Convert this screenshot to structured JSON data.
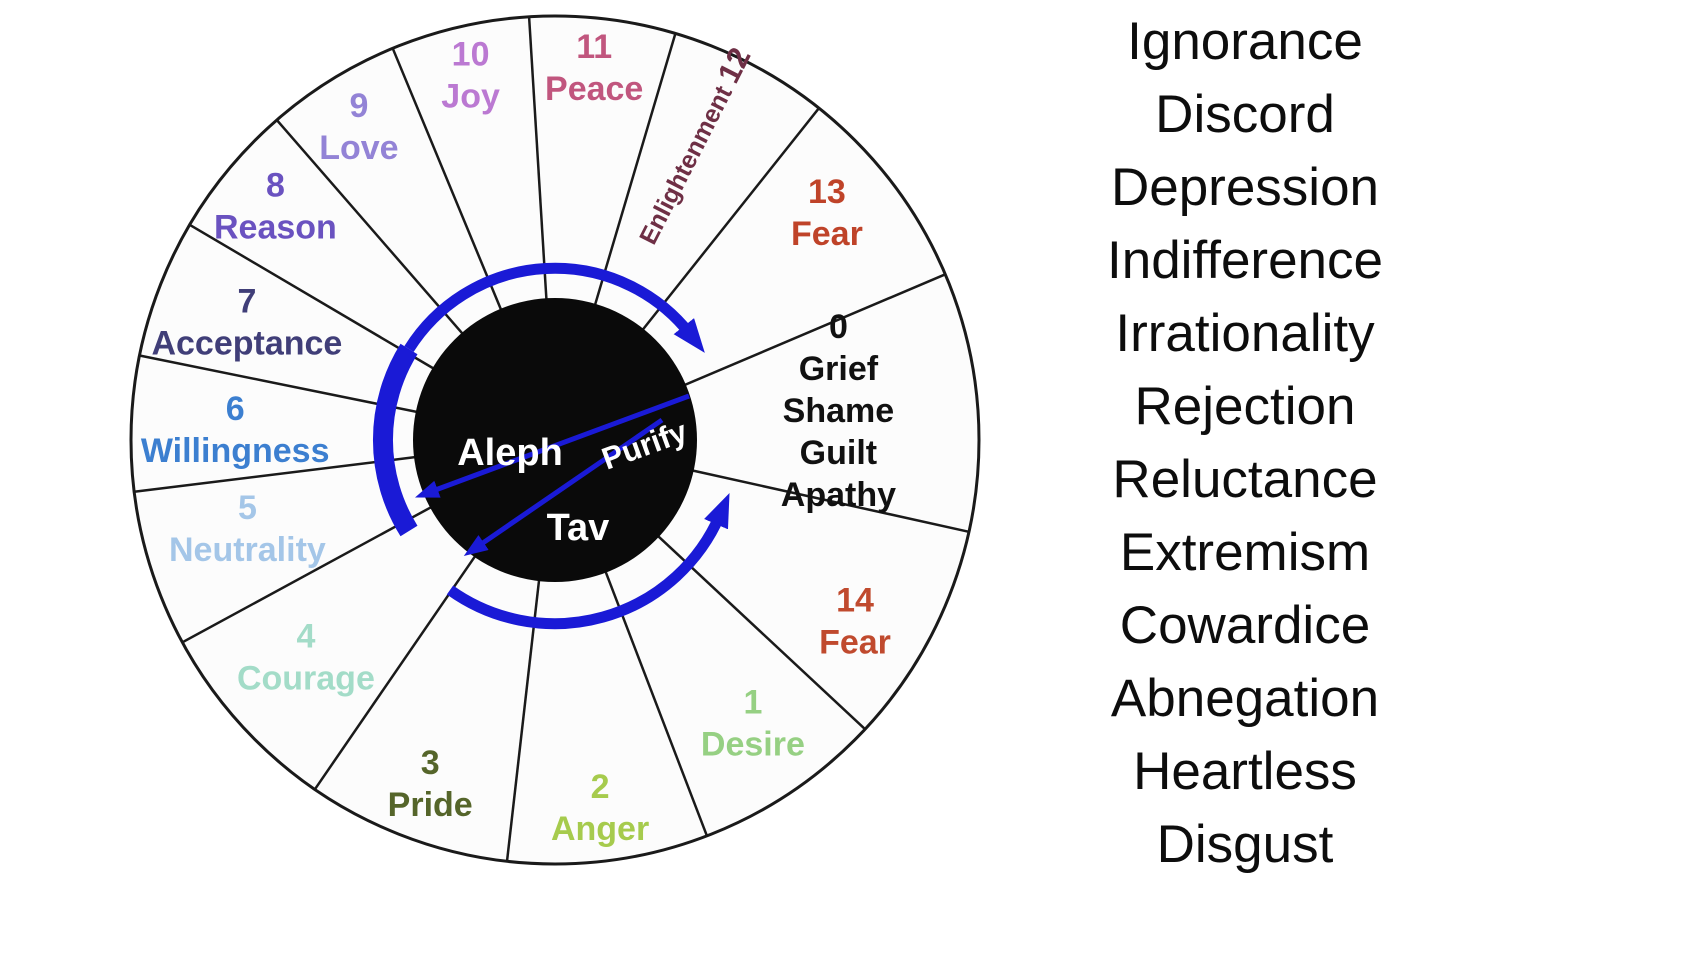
{
  "wheel": {
    "outline_color": "#1a1a1a",
    "background_fill": "#fcfcfc",
    "arrow_color": "#1a1ad6",
    "center": {
      "fill": "#0a0a0a",
      "label_top": "Aleph",
      "label_bottom": "Tav",
      "arrow_label": "Purify",
      "text_color": "#ffffff"
    },
    "segments": [
      {
        "angle": 6,
        "r": 285,
        "lines": [
          "0",
          "Grief",
          "Shame",
          "Guilt",
          "Apathy"
        ],
        "color": "#111111"
      },
      {
        "angle": 40,
        "r": 355,
        "lines": [
          "13",
          "Fear"
        ],
        "color": "#bf4329"
      },
      {
        "angle": 63,
        "r": 325,
        "lines": [
          "Enlightenment",
          "12"
        ],
        "color": "#6e2f45",
        "rotated": true
      },
      {
        "angle": 84,
        "r": 375,
        "lines": [
          "11",
          "Peace"
        ],
        "color": "#c1567e"
      },
      {
        "angle": 103,
        "r": 375,
        "lines": [
          "10",
          "Joy"
        ],
        "color": "#bb79d2"
      },
      {
        "angle": 122,
        "r": 370,
        "lines": [
          "9",
          "Love"
        ],
        "color": "#9383d6"
      },
      {
        "angle": 140,
        "r": 365,
        "lines": [
          "8",
          "Reason"
        ],
        "color": "#6a52c0"
      },
      {
        "angle": 159,
        "r": 330,
        "lines": [
          "7",
          "Acceptance"
        ],
        "color": "#403e78"
      },
      {
        "angle": 178,
        "r": 320,
        "lines": [
          "6",
          "Willingness"
        ],
        "color": "#3c7fd0"
      },
      {
        "angle": 196,
        "r": 320,
        "lines": [
          "5",
          "Neutrality"
        ],
        "color": "#a4c6e8"
      },
      {
        "angle": 221,
        "r": 330,
        "lines": [
          "4",
          "Courage"
        ],
        "color": "#a3dcc8"
      },
      {
        "angle": 250,
        "r": 365,
        "lines": [
          "3",
          "Pride"
        ],
        "color": "#55652a"
      },
      {
        "angle": 277,
        "r": 370,
        "lines": [
          "2",
          "Anger"
        ],
        "color": "#a6cb4d"
      },
      {
        "angle": 305,
        "r": 345,
        "lines": [
          "1",
          "Desire"
        ],
        "color": "#96d083"
      },
      {
        "angle": 329,
        "r": 350,
        "lines": [
          "14",
          "Fear"
        ],
        "color": "#c04a2e"
      }
    ]
  },
  "word_list": {
    "items": [
      "Ignorance",
      "Discord",
      "Depression",
      "Indifference",
      "Irrationality",
      "Rejection",
      "Reluctance",
      "Extremism",
      "Cowardice",
      "Abnegation",
      "Heartless",
      "Disgust"
    ]
  }
}
